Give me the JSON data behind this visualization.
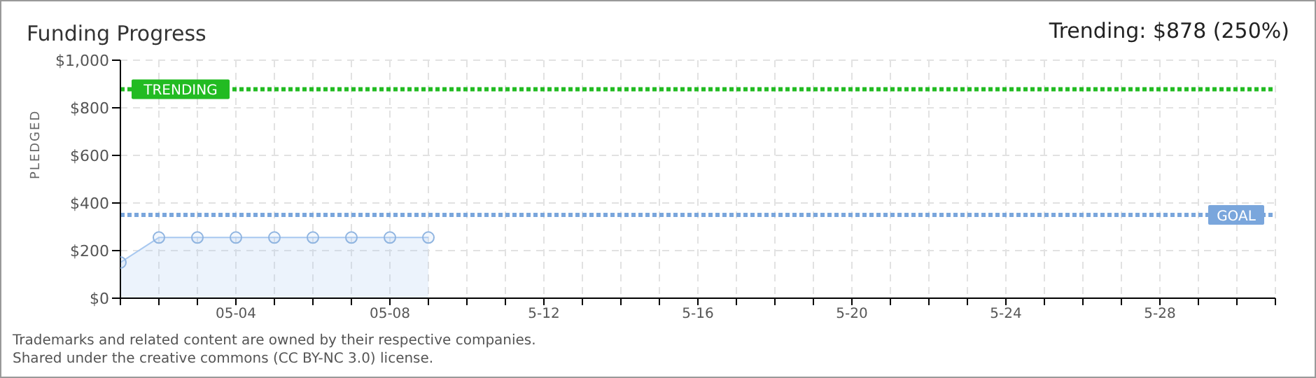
{
  "chart_data": {
    "type": "area",
    "title": "Funding Progress",
    "subtitle": "Trending: $878 (250%)",
    "ylabel": "PLEDGED",
    "x": [
      "--05-01",
      "--05-02",
      "--05-03",
      "--05-04",
      "--05-05",
      "--05-06",
      "--05-07",
      "--05-08",
      "--05-09"
    ],
    "series": [
      {
        "color": "#a8c8f0",
        "values": [
          150,
          255,
          255,
          255,
          255,
          255,
          255,
          255,
          255
        ]
      }
    ],
    "xlim": [
      "--05-01",
      "--05-31"
    ],
    "xticks": [
      {
        "value": "--05-01",
        "label": null
      },
      {
        "value": "--05-02",
        "label": null
      },
      {
        "value": "--05-03",
        "label": null
      },
      {
        "value": "--05-04",
        "label": "05-04"
      },
      {
        "value": "--05-05",
        "label": null
      },
      {
        "value": "--05-06",
        "label": null
      },
      {
        "value": "--05-07",
        "label": null
      },
      {
        "value": "--05-08",
        "label": "05-08"
      },
      {
        "value": "--05-09",
        "label": null
      },
      {
        "value": "--05-10",
        "label": null
      },
      {
        "value": "--05-11",
        "label": null
      },
      {
        "value": "--05-12",
        "label": "5-12"
      },
      {
        "value": "--05-13",
        "label": null
      },
      {
        "value": "--05-14",
        "label": null
      },
      {
        "value": "--05-15",
        "label": null
      },
      {
        "value": "--05-16",
        "label": "5-16"
      },
      {
        "value": "--05-17",
        "label": null
      },
      {
        "value": "--05-18",
        "label": null
      },
      {
        "value": "--05-19",
        "label": null
      },
      {
        "value": "--05-20",
        "label": "5-20"
      },
      {
        "value": "--05-21",
        "label": null
      },
      {
        "value": "--05-22",
        "label": null
      },
      {
        "value": "--05-23",
        "label": null
      },
      {
        "value": "--05-24",
        "label": "5-24"
      },
      {
        "value": "--05-25",
        "label": null
      },
      {
        "value": "--05-26",
        "label": null
      },
      {
        "value": "--05-27",
        "label": null
      },
      {
        "value": "--05-28",
        "label": "5-28"
      },
      {
        "value": "--05-29",
        "label": null
      },
      {
        "value": "--05-30",
        "label": null
      },
      {
        "value": "--05-31",
        "label": null
      }
    ],
    "ylim": [
      0,
      1000
    ],
    "yticks": [
      {
        "value": 0,
        "label": "$0"
      },
      {
        "value": 200,
        "label": "$200"
      },
      {
        "value": 400,
        "label": "$400"
      },
      {
        "value": 600,
        "label": "$600"
      },
      {
        "value": 800,
        "label": "$800"
      },
      {
        "value": 1000,
        "label": "$1,000"
      }
    ],
    "ref_lines": [
      {
        "axis": "y",
        "value": 878,
        "label": "TRENDING",
        "color": "#22bb22",
        "line_style": "dotted"
      },
      {
        "axis": "y",
        "value": 350,
        "label": "GOAL",
        "color": "#7aa6dc",
        "line_style": "dotted"
      }
    ],
    "grid": true,
    "marker": "circle",
    "line_style": "solid",
    "annotations": [
      "Trademarks and related content are owned by their respective companies.",
      "Shared under the creative commons (CC BY-NC 3.0) license."
    ]
  }
}
